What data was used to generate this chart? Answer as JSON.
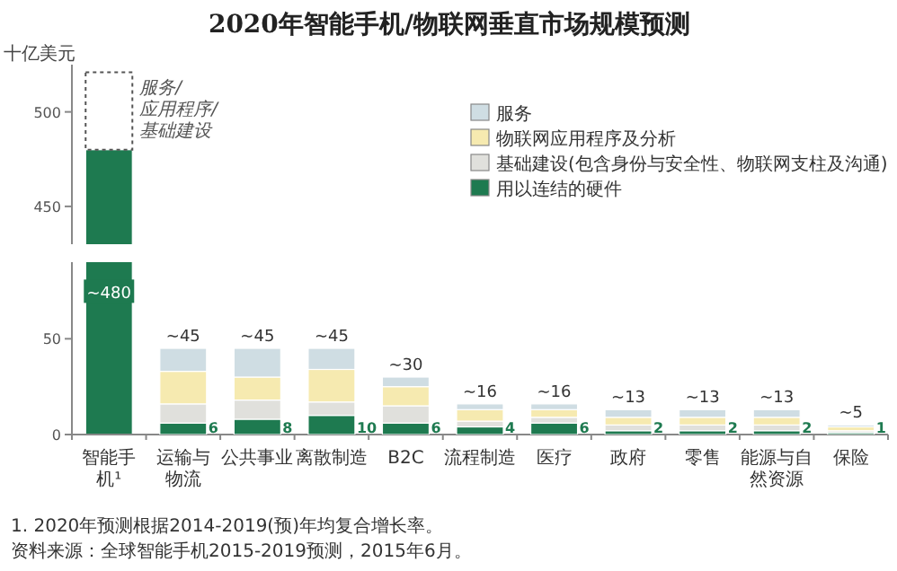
{
  "chart_data": [
    {
      "type": "bar",
      "title": "2020年智能手机/物联网垂直市场规模预测",
      "ylabel": "十亿美元",
      "categories": [
        "智能手机¹",
        "运输与物流",
        "公共事业",
        "离散制造",
        "B2C",
        "流程制造",
        "医疗",
        "政府",
        "零售",
        "能源与自然资源",
        "保险"
      ],
      "ylim": [
        430,
        525
      ],
      "yticks": [
        450,
        500
      ],
      "tick_labels": "y",
      "legend": "top right",
      "series": [
        {
          "name": "用以连结的硬件",
          "color": "#1e7a50",
          "values": [
            480,
            null,
            null,
            null,
            null,
            null,
            null,
            null,
            null,
            null,
            null
          ],
          "value_labels": [
            "~480",
            null,
            null,
            null,
            null,
            null,
            null,
            null,
            null,
            null,
            null
          ]
        },
        {
          "name": "服务/应用程序/基础建设",
          "color": "#ffffff",
          "line_style": "dashed",
          "base": [
            480,
            null,
            null,
            null,
            null,
            null,
            null,
            null,
            null,
            null,
            null
          ],
          "values": [
            41,
            null,
            null,
            null,
            null,
            null,
            null,
            null,
            null,
            null,
            null
          ]
        },
        {
          "name": "基础建设(包含身份与安全性、物联网支柱及沟通)",
          "color": "#e0e0dc",
          "values": [
            null,
            null,
            null,
            null,
            null,
            null,
            null,
            null,
            null,
            null,
            null
          ]
        },
        {
          "name": "物联网应用程序及分析",
          "color": "#f6eab0",
          "values": [
            null,
            null,
            null,
            null,
            null,
            null,
            null,
            null,
            null,
            null,
            null
          ]
        },
        {
          "name": "服务",
          "color": "#cfdde3",
          "values": [
            null,
            null,
            null,
            null,
            null,
            null,
            null,
            null,
            null,
            null,
            null
          ]
        }
      ]
    },
    {
      "type": "bar",
      "stacked": true,
      "categories": [
        "智能手机¹",
        "运输与物流",
        "公共事业",
        "离散制造",
        "B2C",
        "流程制造",
        "医疗",
        "政府",
        "零售",
        "能源与自然资源",
        "保险"
      ],
      "ylim": [
        0,
        90
      ],
      "yticks": [
        0,
        50
      ],
      "series": [
        {
          "color": "#1e7a50",
          "values": [
            null,
            6,
            8,
            10,
            6,
            4,
            6,
            2,
            2,
            2,
            1
          ],
          "value_labels": [
            null,
            "6",
            "8",
            "10",
            "6",
            "4",
            "6",
            "2",
            "2",
            "2",
            "1"
          ]
        },
        {
          "color": "#e0e0dc",
          "values": [
            null,
            10,
            10,
            7,
            9,
            3,
            3,
            3,
            3,
            3,
            1
          ]
        },
        {
          "color": "#f6eab0",
          "values": [
            null,
            17,
            12,
            17,
            10,
            6,
            4,
            4,
            4,
            4,
            2
          ]
        },
        {
          "color": "#cfdde3",
          "values": [
            null,
            12,
            15,
            11,
            5,
            3,
            3,
            4,
            4,
            4,
            1
          ]
        }
      ],
      "totals": [
        null,
        "~45",
        "~45",
        "~45",
        "~30",
        "~16",
        "~16",
        "~13",
        "~13",
        "~13",
        "~5"
      ],
      "annotations": [
        "1. 2020年预测根据2014-2019(预)年均复合增长率。",
        "资料来源：全球智能手机2015-2019预测，2015年6月。"
      ]
    }
  ]
}
